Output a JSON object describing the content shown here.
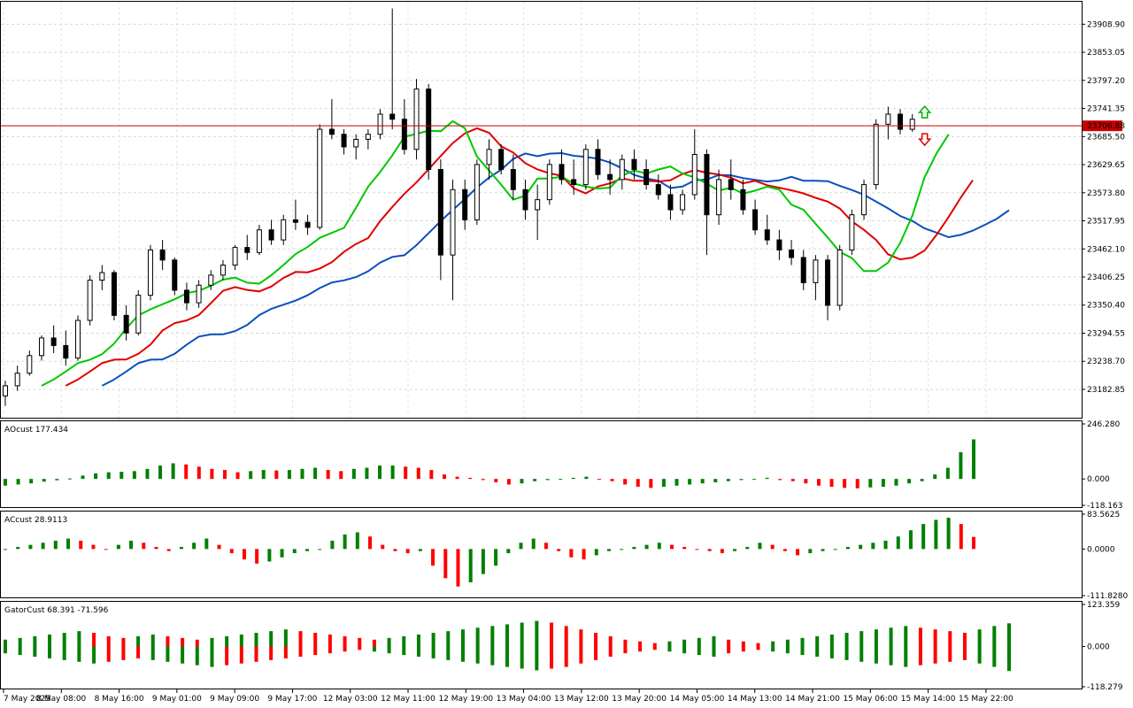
{
  "panes": {
    "main": {
      "y_ticks": [
        "23908.90",
        "23853.05",
        "23797.20",
        "23741.35",
        "23685.50",
        "23629.65",
        "23573.80",
        "23517.95",
        "23462.10",
        "23406.25",
        "23350.40",
        "23294.55",
        "23238.70",
        "23182.85"
      ],
      "ylim": [
        23130,
        23950
      ],
      "current_price": "23706.88",
      "colors": {
        "line_green": "#00c800",
        "line_red": "#e00000",
        "line_blue": "#0a4fbf",
        "price_line": "#c80000",
        "up_arrow": "#00b400",
        "down_arrow": "#e00000"
      }
    },
    "ao": {
      "title": "AOcust 177.434",
      "y_ticks": [
        "246.280",
        "0.000",
        "-118.163"
      ],
      "ylim": [
        -118.163,
        246.28
      ]
    },
    "ac": {
      "title": "ACcust 28.9113",
      "y_ticks": [
        "83.5625",
        "0.0000",
        "-111.8280"
      ],
      "ylim": [
        -111.828,
        83.5625
      ]
    },
    "gator": {
      "title": "GatorCust 68.391 -71.596",
      "y_ticks": [
        "123.359",
        "0.000",
        "-118.279"
      ],
      "ylim": [
        -118.279,
        123.359
      ]
    }
  },
  "x_labels": [
    "7 May 2025",
    "8 May 08:00",
    "8 May 16:00",
    "9 May 01:00",
    "9 May 09:00",
    "9 May 17:00",
    "12 May 03:00",
    "12 May 11:00",
    "12 May 19:00",
    "13 May 04:00",
    "13 May 12:00",
    "13 May 20:00",
    "14 May 05:00",
    "14 May 13:00",
    "14 May 21:00",
    "15 May 06:00",
    "15 May 14:00",
    "15 May 22:00"
  ],
  "chart_data": [
    {
      "type": "candlestick",
      "title": "",
      "series": [
        {
          "name": "",
          "values": [
            [
              23170,
              23200,
              23150,
              23190
            ],
            [
              23190,
              23230,
              23180,
              23215
            ],
            [
              23215,
              23260,
              23210,
              23250
            ],
            [
              23250,
              23290,
              23240,
              23285
            ],
            [
              23285,
              23310,
              23255,
              23270
            ],
            [
              23270,
              23300,
              23230,
              23245
            ],
            [
              23245,
              23330,
              23240,
              23320
            ],
            [
              23320,
              23410,
              23310,
              23400
            ],
            [
              23400,
              23430,
              23380,
              23415
            ],
            [
              23415,
              23420,
              23320,
              23330
            ],
            [
              23330,
              23350,
              23280,
              23295
            ],
            [
              23295,
              23380,
              23290,
              23370
            ],
            [
              23370,
              23470,
              23360,
              23460
            ],
            [
              23460,
              23480,
              23420,
              23440
            ],
            [
              23440,
              23445,
              23370,
              23380
            ],
            [
              23380,
              23395,
              23340,
              23355
            ],
            [
              23355,
              23400,
              23345,
              23390
            ],
            [
              23390,
              23420,
              23380,
              23410
            ],
            [
              23410,
              23440,
              23400,
              23430
            ],
            [
              23430,
              23470,
              23420,
              23465
            ],
            [
              23465,
              23490,
              23440,
              23455
            ],
            [
              23455,
              23510,
              23450,
              23500
            ],
            [
              23500,
              23520,
              23470,
              23480
            ],
            [
              23480,
              23530,
              23470,
              23520
            ],
            [
              23520,
              23560,
              23500,
              23515
            ],
            [
              23515,
              23530,
              23490,
              23505
            ],
            [
              23505,
              23710,
              23500,
              23700
            ],
            [
              23700,
              23760,
              23680,
              23690
            ],
            [
              23690,
              23700,
              23650,
              23665
            ],
            [
              23665,
              23690,
              23640,
              23680
            ],
            [
              23680,
              23700,
              23660,
              23690
            ],
            [
              23690,
              23740,
              23680,
              23730
            ],
            [
              23730,
              23940,
              23700,
              23720
            ],
            [
              23720,
              23760,
              23650,
              23660
            ],
            [
              23660,
              23800,
              23640,
              23780
            ],
            [
              23780,
              23790,
              23600,
              23620
            ],
            [
              23620,
              23640,
              23400,
              23450
            ],
            [
              23450,
              23600,
              23360,
              23580
            ],
            [
              23580,
              23600,
              23500,
              23520
            ],
            [
              23520,
              23640,
              23510,
              23630
            ],
            [
              23630,
              23680,
              23600,
              23660
            ],
            [
              23660,
              23670,
              23610,
              23620
            ],
            [
              23620,
              23650,
              23560,
              23580
            ],
            [
              23580,
              23600,
              23520,
              23540
            ],
            [
              23540,
              23590,
              23480,
              23560
            ],
            [
              23560,
              23640,
              23550,
              23630
            ],
            [
              23630,
              23660,
              23590,
              23600
            ],
            [
              23600,
              23640,
              23570,
              23590
            ],
            [
              23590,
              23670,
              23580,
              23660
            ],
            [
              23660,
              23680,
              23600,
              23610
            ],
            [
              23610,
              23640,
              23570,
              23600
            ],
            [
              23600,
              23650,
              23580,
              23640
            ],
            [
              23640,
              23660,
              23600,
              23620
            ],
            [
              23620,
              23640,
              23580,
              23590
            ],
            [
              23590,
              23610,
              23560,
              23570
            ],
            [
              23570,
              23590,
              23520,
              23540
            ],
            [
              23540,
              23580,
              23530,
              23570
            ],
            [
              23570,
              23700,
              23560,
              23650
            ],
            [
              23650,
              23660,
              23450,
              23530
            ],
            [
              23530,
              23620,
              23510,
              23600
            ],
            [
              23600,
              23640,
              23560,
              23580
            ],
            [
              23580,
              23600,
              23530,
              23540
            ],
            [
              23540,
              23560,
              23490,
              23500
            ],
            [
              23500,
              23530,
              23470,
              23480
            ],
            [
              23480,
              23500,
              23440,
              23460
            ],
            [
              23460,
              23480,
              23430,
              23445
            ],
            [
              23445,
              23460,
              23380,
              23395
            ],
            [
              23395,
              23450,
              23360,
              23440
            ],
            [
              23440,
              23450,
              23320,
              23350
            ],
            [
              23350,
              23470,
              23340,
              23460
            ],
            [
              23460,
              23540,
              23450,
              23530
            ],
            [
              23530,
              23600,
              23520,
              23590
            ],
            [
              23590,
              23720,
              23580,
              23710
            ],
            [
              23710,
              23745,
              23680,
              23730
            ],
            [
              23730,
              23740,
              23690,
              23700
            ],
            [
              23700,
              23730,
              23695,
              23720
            ]
          ]
        }
      ],
      "xlabel": "",
      "ylabel": ""
    },
    {
      "type": "bar",
      "title": "AOcust 177.434",
      "values": [
        -30,
        -25,
        -20,
        -12,
        -6,
        2,
        15,
        25,
        30,
        32,
        35,
        45,
        60,
        70,
        65,
        55,
        45,
        40,
        30,
        35,
        40,
        38,
        40,
        45,
        50,
        40,
        35,
        45,
        50,
        60,
        60,
        55,
        50,
        40,
        20,
        10,
        5,
        -5,
        -15,
        -25,
        -20,
        -10,
        -5,
        0,
        5,
        10,
        0,
        -10,
        -25,
        -35,
        -40,
        -35,
        -30,
        -25,
        -20,
        -15,
        -10,
        -5,
        0,
        5,
        -5,
        -10,
        -20,
        -30,
        -35,
        -40,
        -42,
        -38,
        -35,
        -30,
        -20,
        -10,
        20,
        50,
        120,
        177
      ]
    },
    {
      "type": "bar",
      "title": "ACcust 28.9113",
      "values": [
        0,
        5,
        10,
        15,
        20,
        25,
        20,
        10,
        0,
        10,
        20,
        15,
        5,
        -5,
        5,
        15,
        25,
        10,
        -10,
        -25,
        -35,
        -30,
        -20,
        -10,
        -5,
        0,
        20,
        35,
        40,
        30,
        10,
        -5,
        -10,
        -5,
        -40,
        -70,
        -90,
        -80,
        -60,
        -40,
        -10,
        15,
        25,
        15,
        -5,
        -20,
        -25,
        -15,
        -5,
        0,
        5,
        10,
        15,
        10,
        5,
        0,
        -5,
        -10,
        -5,
        5,
        15,
        10,
        -5,
        -15,
        -10,
        -5,
        0,
        5,
        10,
        15,
        20,
        30,
        45,
        60,
        70,
        75,
        60,
        29
      ]
    },
    {
      "type": "bar",
      "title": "GatorCust 68.391 -71.596",
      "values_upper": [
        20,
        25,
        30,
        35,
        40,
        45,
        40,
        30,
        25,
        30,
        35,
        30,
        25,
        20,
        25,
        30,
        35,
        40,
        45,
        50,
        45,
        40,
        35,
        30,
        25,
        20,
        25,
        30,
        35,
        40,
        45,
        50,
        55,
        60,
        65,
        70,
        75,
        70,
        60,
        50,
        40,
        30,
        20,
        15,
        10,
        15,
        20,
        25,
        30,
        20,
        15,
        10,
        15,
        20,
        25,
        30,
        35,
        40,
        45,
        50,
        55,
        60,
        55,
        50,
        45,
        40,
        50,
        60,
        68
      ],
      "values_lower": [
        -20,
        -25,
        -30,
        -35,
        -40,
        -45,
        -50,
        -45,
        -40,
        -35,
        -40,
        -45,
        -50,
        -55,
        -60,
        -55,
        -50,
        -45,
        -40,
        -35,
        -30,
        -25,
        -20,
        -15,
        -10,
        -15,
        -20,
        -25,
        -30,
        -35,
        -40,
        -45,
        -50,
        -55,
        -60,
        -65,
        -70,
        -65,
        -60,
        -50,
        -40,
        -30,
        -20,
        -15,
        -10,
        -15,
        -20,
        -25,
        -30,
        -20,
        -15,
        -10,
        -15,
        -20,
        -25,
        -30,
        -35,
        -40,
        -45,
        -50,
        -55,
        -60,
        -55,
        -50,
        -45,
        -40,
        -50,
        -60,
        -72
      ]
    }
  ]
}
